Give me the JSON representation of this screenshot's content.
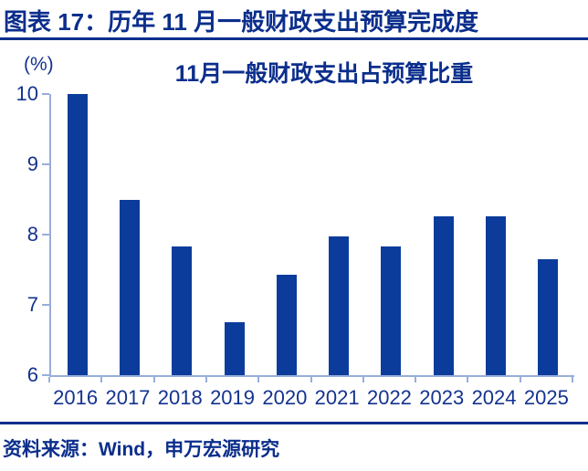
{
  "header": {
    "title": "图表 17：历年 11 月一般财政支出预算完成度"
  },
  "colors": {
    "heading_text": "#0B2E8C",
    "bar": "#0B3C9C",
    "axis_line": "#97AEDA",
    "tick_label": "#14338F",
    "background": "#FFFFFF"
  },
  "chart_data": {
    "type": "bar",
    "title": "11月一般财政支出占预算比重",
    "unit": "(%)",
    "categories": [
      "2016",
      "2017",
      "2018",
      "2019",
      "2020",
      "2021",
      "2022",
      "2023",
      "2024",
      "2025"
    ],
    "values": [
      10.0,
      8.5,
      7.83,
      6.75,
      7.43,
      7.98,
      7.83,
      8.26,
      8.26,
      7.65
    ],
    "xlabel": "",
    "ylabel": "(%)",
    "ylim": [
      6,
      10
    ],
    "yticks": [
      10,
      9,
      8,
      7,
      6
    ],
    "grid": false,
    "legend_position": "none",
    "bar_color": "#0B3C9C",
    "axis_color": "#97AEDA",
    "tick_label_color": "#14338F"
  },
  "footer": {
    "source": "资料来源：Wind，申万宏源研究"
  }
}
